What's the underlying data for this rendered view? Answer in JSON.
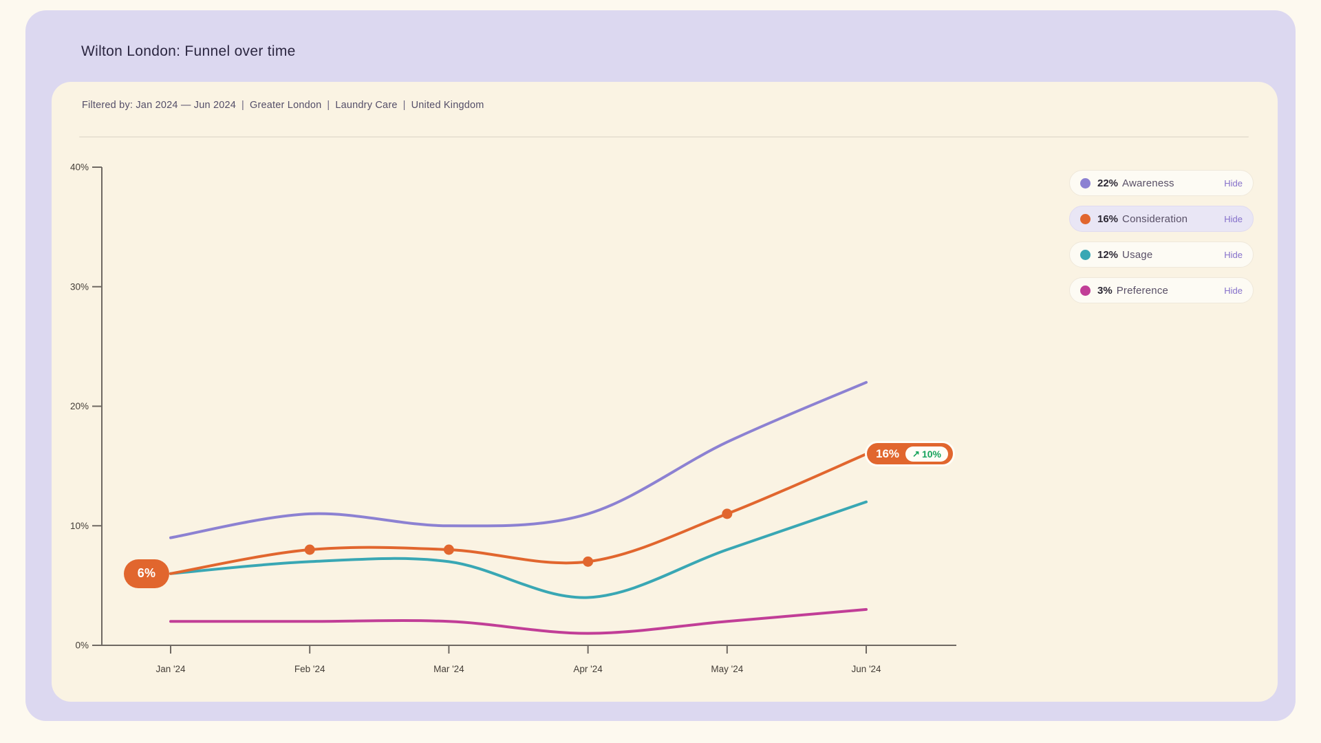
{
  "header": {
    "title": "Wilton London: Funnel over time"
  },
  "filters": {
    "label": "Filtered by:",
    "range": "Jan 2024 — Jun 2024",
    "items": [
      "Greater London",
      "Laundry Care",
      "United Kingdom"
    ],
    "separator": "|"
  },
  "legend": {
    "items": [
      {
        "value": "22%",
        "name": "Awareness",
        "action": "Hide",
        "color": "#8c81d2",
        "highlighted": false
      },
      {
        "value": "16%",
        "name": "Consideration",
        "action": "Hide",
        "color": "#e1662e",
        "highlighted": true
      },
      {
        "value": "12%",
        "name": "Usage",
        "action": "Hide",
        "color": "#39a7b4",
        "highlighted": false
      },
      {
        "value": "3%",
        "name": "Preference",
        "action": "Hide",
        "color": "#c13e97",
        "highlighted": false
      }
    ]
  },
  "chart_data": {
    "type": "line",
    "x": [
      "Jan '24",
      "Feb '24",
      "Mar '24",
      "Apr '24",
      "May '24",
      "Jun '24"
    ],
    "yticks": [
      "0%",
      "10%",
      "20%",
      "30%",
      "40%"
    ],
    "ylim": [
      0,
      40
    ],
    "grid": false,
    "legend_position": "top-right",
    "series": [
      {
        "name": "Awareness",
        "color": "#8c81d2",
        "values": [
          9,
          11,
          10,
          11,
          17,
          22
        ]
      },
      {
        "name": "Usage",
        "color": "#39a7b4",
        "values": [
          6,
          7,
          7,
          4,
          8,
          12
        ]
      },
      {
        "name": "Preference",
        "color": "#c13e97",
        "values": [
          2,
          2,
          2,
          1,
          2,
          3
        ]
      },
      {
        "name": "Consideration",
        "color": "#e1662e",
        "values": [
          6,
          8,
          8,
          7,
          11,
          16
        ],
        "markers": [
          1,
          2,
          3,
          4
        ]
      }
    ],
    "annotations": {
      "start_badge": {
        "text": "6%",
        "series": "Consideration",
        "x_index": 0
      },
      "end_badge": {
        "text": "16%",
        "arrow": "↗",
        "change": "10%",
        "direction": "up",
        "series": "Consideration",
        "x_index": 5
      }
    }
  }
}
